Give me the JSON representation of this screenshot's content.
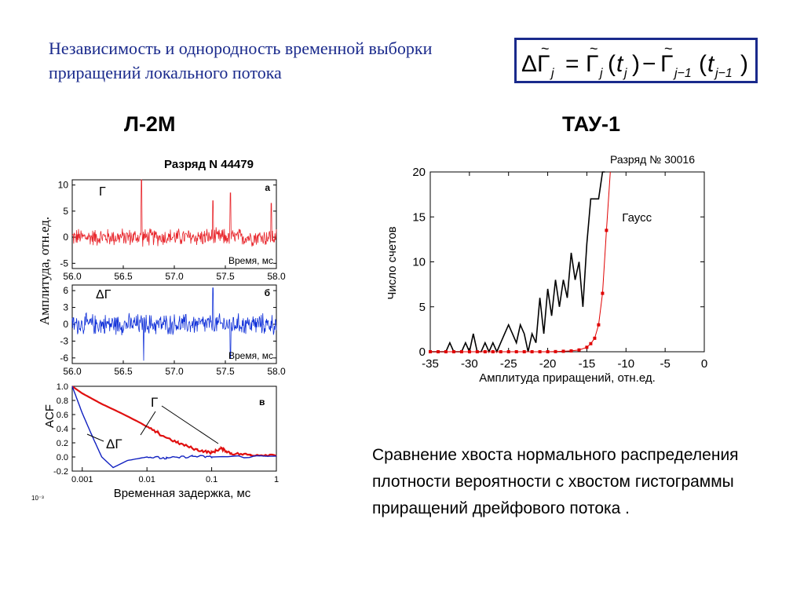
{
  "slide": {
    "title": "Независимость и однородность временной выборки приращений  локального потока",
    "left_heading": "Л-2М",
    "right_heading": "ТАУ-1",
    "caption": "Сравнение хвоста нормального распределения плотности вероятности с хвостом гистограммы приращений дрейфового потока ."
  },
  "formula": {
    "lhs_delta": "Δ",
    "gamma": "Γ",
    "j": "j",
    "eq": "=",
    "t": "t",
    "minus": "−",
    "jm1": "j−1",
    "lp": "(",
    "rp": ")"
  },
  "left_figure": {
    "title": "Разряд N 44479",
    "ylabel": "Амплитуда, отн.ед.",
    "stray_label": "10⁻³",
    "colors": {
      "gamma": "#e8242a",
      "dgamma": "#1030d8",
      "acf_gamma": "#e01010",
      "acf_dgamma": "#1020c0"
    }
  },
  "chart_data": [
    {
      "type": "line",
      "panel_label": "а",
      "series_label": "Γ",
      "inner_xlabel": "Время, мс",
      "xlim": [
        56.0,
        58.0
      ],
      "ylim": [
        -6,
        11
      ],
      "xticks": [
        "56.0",
        "56.5",
        "57.0",
        "57.5",
        "58.0"
      ],
      "yticks": [
        "10",
        "5",
        "0",
        "-5"
      ],
      "series": [
        {
          "values_note": "",
          "x_start": 56.0,
          "x_end": 58.0,
          "baseline": 0.0,
          "noise_amplitude": 2.0,
          "spikes": [
            [
              56.68,
              11.0
            ],
            [
              57.38,
              7.0
            ],
            [
              57.55,
              8.5
            ],
            [
              57.95,
              6.5
            ]
          ]
        }
      ]
    },
    {
      "type": "line",
      "panel_label": "б",
      "series_label": "ΔΓ",
      "inner_xlabel": "Время, мс",
      "xlim": [
        56.0,
        58.0
      ],
      "ylim": [
        -7,
        7
      ],
      "xticks": [
        "56.0",
        "56.5",
        "57.0",
        "57.5",
        "58.0"
      ],
      "yticks": [
        "6",
        "3",
        "0",
        "-3",
        "-6"
      ],
      "series": [
        {
          "x_start": 56.0,
          "x_end": 58.0,
          "baseline": 0.0,
          "noise_amplitude": 2.2,
          "spikes": [
            [
              56.7,
              -6.5
            ],
            [
              57.38,
              6.5
            ],
            [
              57.55,
              -6.0
            ]
          ]
        }
      ]
    },
    {
      "type": "line",
      "panel_label": "в",
      "ylabel": "ACF",
      "xlabel": "Временная задержка, мс",
      "xscale": "log",
      "xlim": [
        0.0007,
        1
      ],
      "ylim": [
        -0.2,
        1.0
      ],
      "xticks": [
        "0.001",
        "0.01",
        "0.1",
        "1"
      ],
      "yticks": [
        "1.0",
        "0.8",
        "0.6",
        "0.4",
        "0.2",
        "0.0",
        "-0.2"
      ],
      "annotations": [
        "Γ",
        "ΔΓ"
      ],
      "series": [
        {
          "name": "Γ",
          "x": [
            0.0007,
            0.001,
            0.002,
            0.004,
            0.008,
            0.015,
            0.03,
            0.06,
            0.1,
            0.14,
            0.2,
            0.4,
            1
          ],
          "y": [
            1.0,
            0.9,
            0.75,
            0.62,
            0.48,
            0.33,
            0.2,
            0.1,
            0.06,
            0.12,
            0.05,
            0.03,
            0.03
          ]
        },
        {
          "name": "ΔΓ",
          "x": [
            0.0007,
            0.001,
            0.0015,
            0.002,
            0.003,
            0.005,
            0.01,
            0.02,
            0.05,
            0.1,
            1
          ],
          "y": [
            1.0,
            0.62,
            0.25,
            0.0,
            -0.15,
            -0.05,
            0.0,
            -0.02,
            0.01,
            0.0,
            0.01
          ]
        }
      ]
    },
    {
      "type": "line",
      "title": "Разряд № 30016",
      "xlabel": "Амплитуда приращений, отн.ед.",
      "ylabel": "Число счетов",
      "xlim": [
        -35,
        0
      ],
      "ylim": [
        0,
        20
      ],
      "xticks": [
        "-35",
        "-30",
        "-25",
        "-20",
        "-15",
        "-10",
        "-5",
        "0"
      ],
      "yticks": [
        "20",
        "15",
        "10",
        "5",
        "0"
      ],
      "series": [
        {
          "name": "",
          "color": "#000000",
          "x": [
            -35,
            -33,
            -32.5,
            -32,
            -31.5,
            -31,
            -30.5,
            -30,
            -29.5,
            -29,
            -28.5,
            -28,
            -27.5,
            -27,
            -26.5,
            -26,
            -25.5,
            -25,
            -24.5,
            -24,
            -23.5,
            -23,
            -22.5,
            -22,
            -21.5,
            -21,
            -20.5,
            -20,
            -19.5,
            -19,
            -18.5,
            -18,
            -17.5,
            -17,
            -16.5,
            -16,
            -15.5,
            -15,
            -14.5,
            -14,
            -13.5,
            -13,
            -12.7
          ],
          "y": [
            0,
            0,
            1,
            0,
            0,
            0,
            1,
            0,
            2,
            0,
            0,
            1,
            0,
            1,
            0,
            1,
            2,
            3,
            2,
            1,
            3,
            2,
            0,
            2,
            1,
            6,
            2,
            7,
            4,
            8,
            5,
            8,
            6,
            11,
            8,
            10,
            5,
            12,
            17,
            17,
            17,
            20,
            20
          ]
        },
        {
          "name": "Гаусс",
          "color": "#e00000",
          "x": [
            -35,
            -34,
            -33,
            -32,
            -31,
            -30,
            -29,
            -28,
            -27,
            -26,
            -25,
            -24,
            -23,
            -22,
            -21,
            -20,
            -19,
            -18,
            -17,
            -16,
            -15,
            -14.5,
            -14,
            -13.5,
            -13,
            -12.5,
            -12
          ],
          "y": [
            0,
            0,
            0,
            0,
            0,
            0,
            0,
            0,
            0,
            0,
            0,
            0,
            0,
            0,
            0,
            0,
            0.02,
            0.05,
            0.1,
            0.2,
            0.5,
            0.9,
            1.5,
            3.0,
            6.5,
            13.5,
            20
          ]
        }
      ],
      "annotations": [
        "Гаусс"
      ]
    }
  ]
}
